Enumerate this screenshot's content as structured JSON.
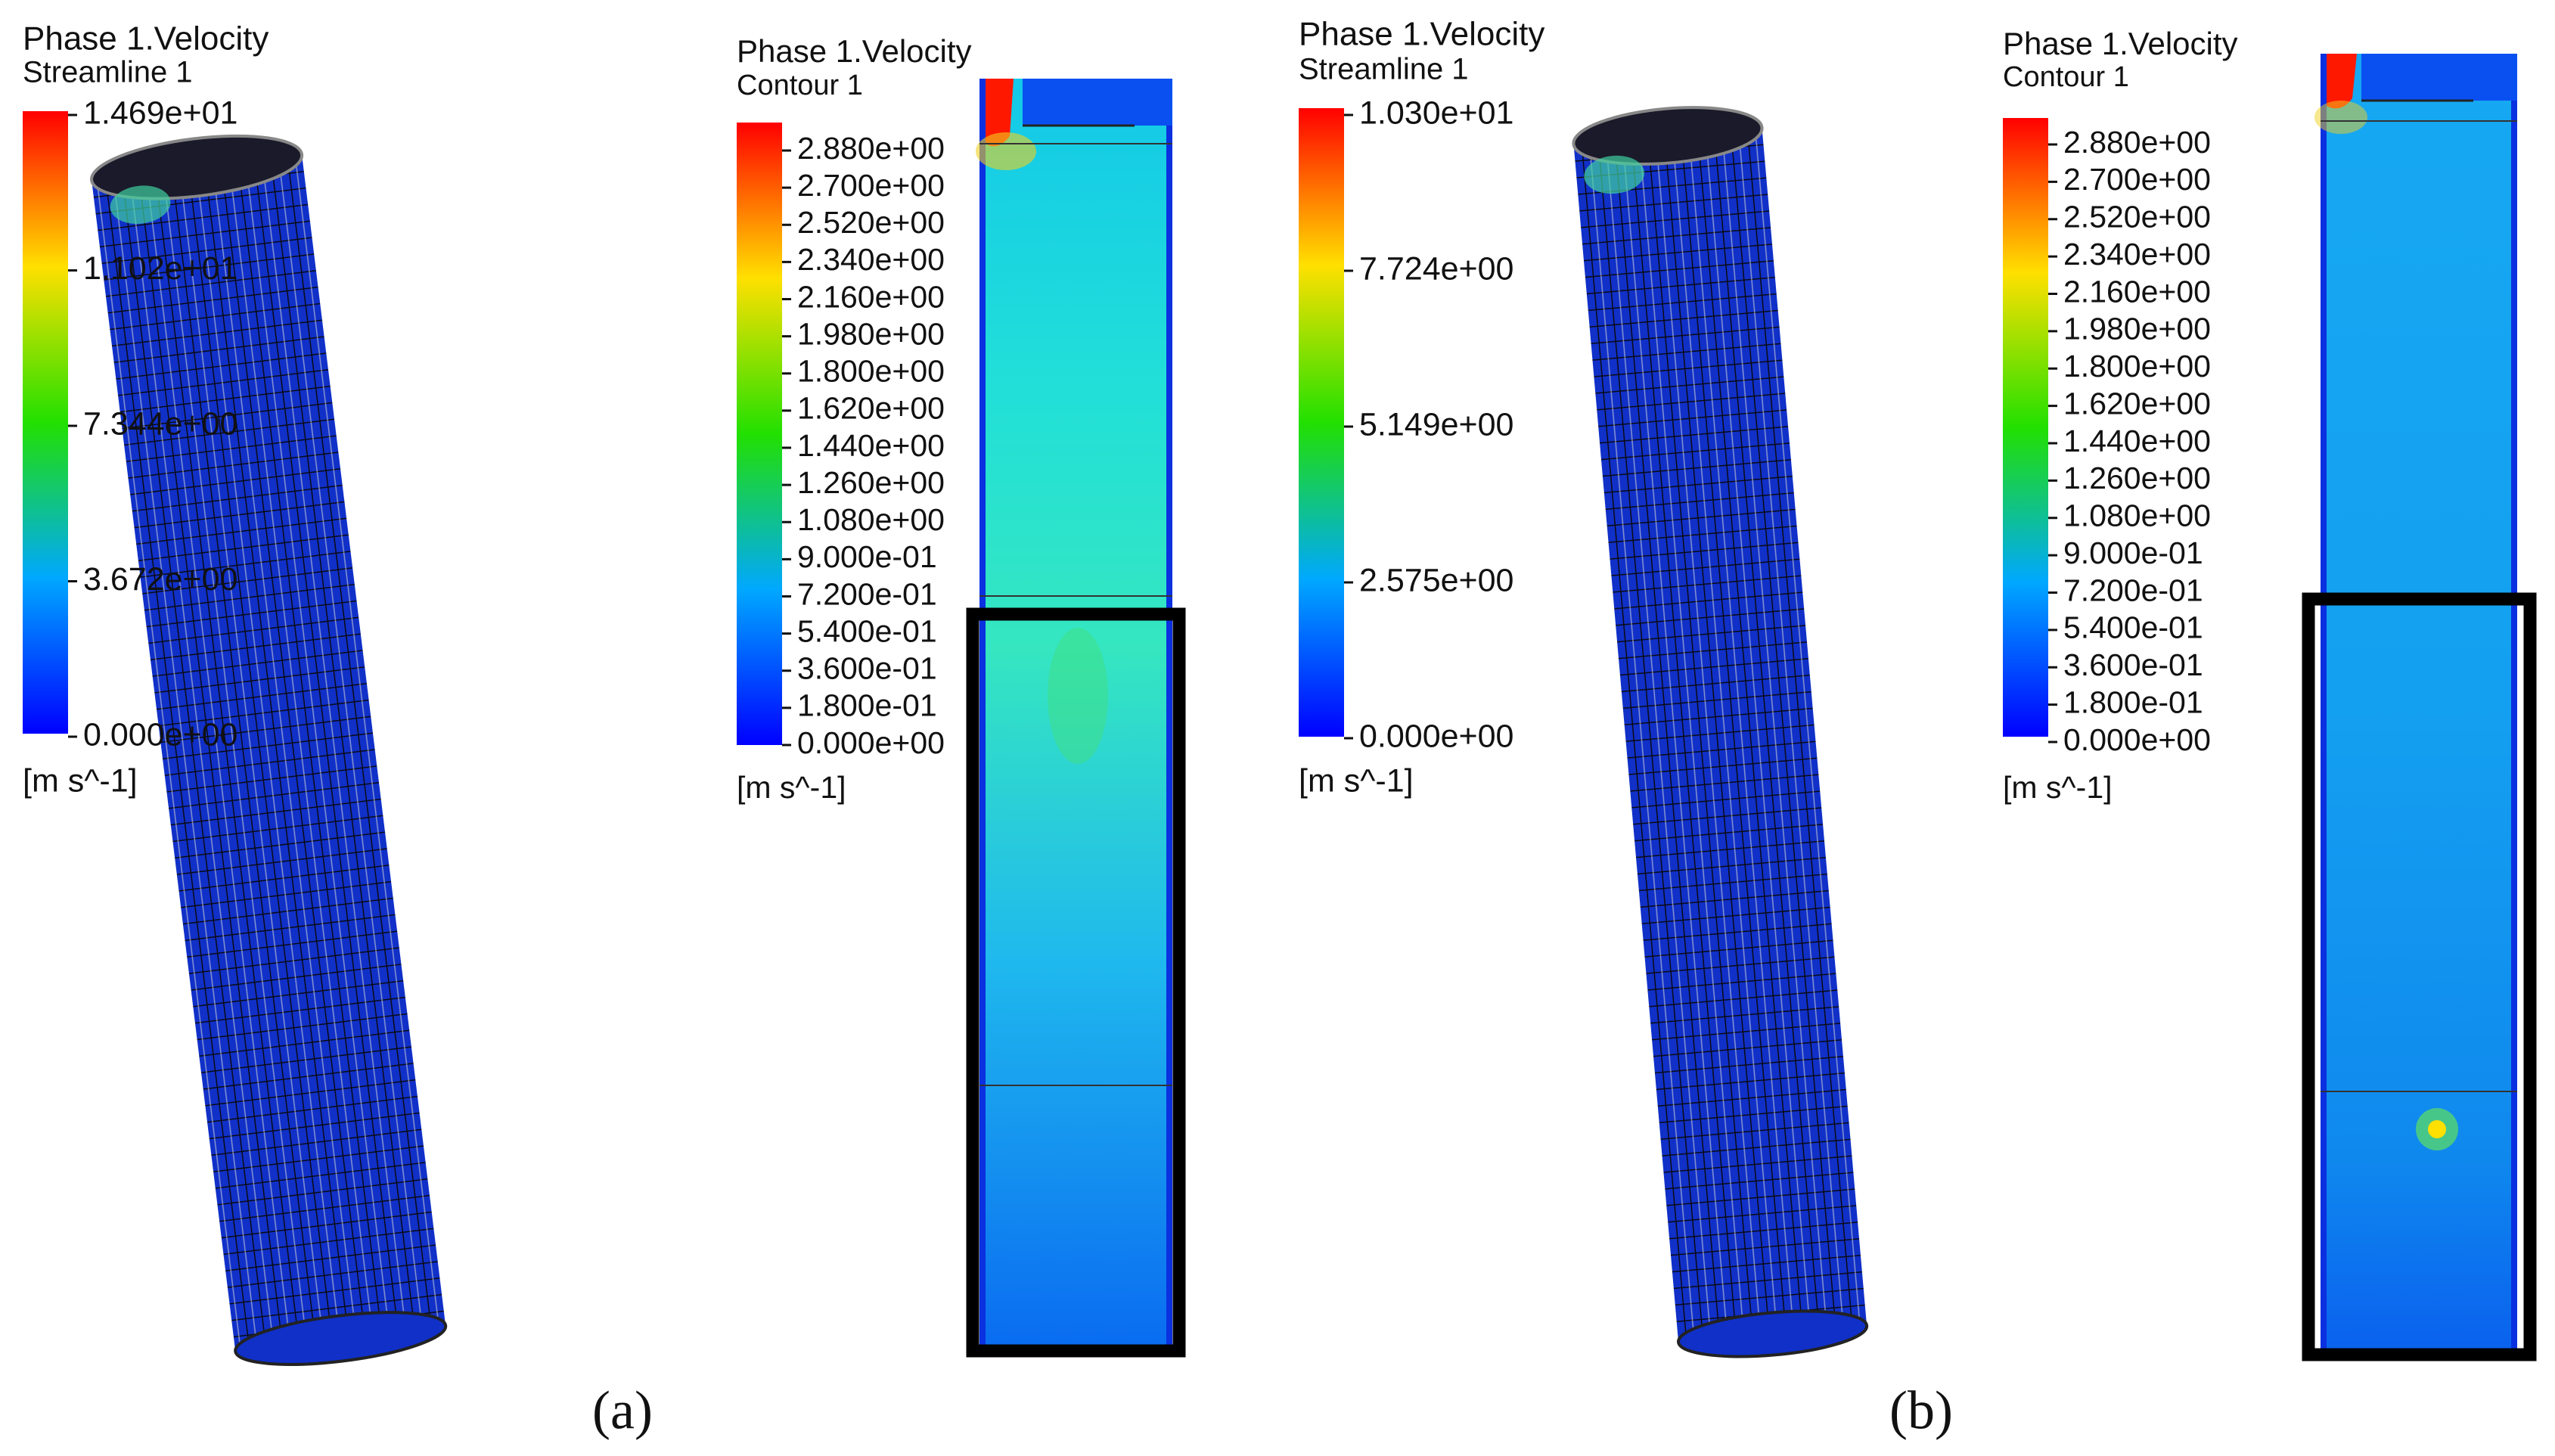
{
  "panels": [
    {
      "label": "(a)",
      "streamline": {
        "title": "Phase 1.Velocity",
        "subtitle": "Streamline 1",
        "ticks": [
          "1.469e+01",
          "1.102e+01",
          "7.344e+00",
          "3.672e+00",
          "0.000e+00"
        ],
        "units": "[m s^-1]"
      },
      "contour": {
        "title": "Phase 1.Velocity",
        "subtitle": "Contour 1",
        "ticks": [
          "2.880e+00",
          "2.700e+00",
          "2.520e+00",
          "2.340e+00",
          "2.160e+00",
          "1.980e+00",
          "1.800e+00",
          "1.620e+00",
          "1.440e+00",
          "1.260e+00",
          "1.080e+00",
          "9.000e-01",
          "7.200e-01",
          "5.400e-01",
          "3.600e-01",
          "1.800e-01",
          "0.000e+00"
        ],
        "units": "[m s^-1]"
      }
    },
    {
      "label": "(b)",
      "streamline": {
        "title": "Phase 1.Velocity",
        "subtitle": "Streamline 1",
        "ticks": [
          "1.030e+01",
          "7.724e+00",
          "5.149e+00",
          "2.575e+00",
          "0.000e+00"
        ],
        "units": "[m s^-1]"
      },
      "contour": {
        "title": "Phase 1.Velocity",
        "subtitle": "Contour 1",
        "ticks": [
          "2.880e+00",
          "2.700e+00",
          "2.520e+00",
          "2.340e+00",
          "2.160e+00",
          "1.980e+00",
          "1.800e+00",
          "1.620e+00",
          "1.440e+00",
          "1.260e+00",
          "1.080e+00",
          "9.000e-01",
          "7.200e-01",
          "5.400e-01",
          "3.600e-01",
          "1.800e-01",
          "0.000e+00"
        ],
        "units": "[m s^-1]"
      }
    }
  ]
}
